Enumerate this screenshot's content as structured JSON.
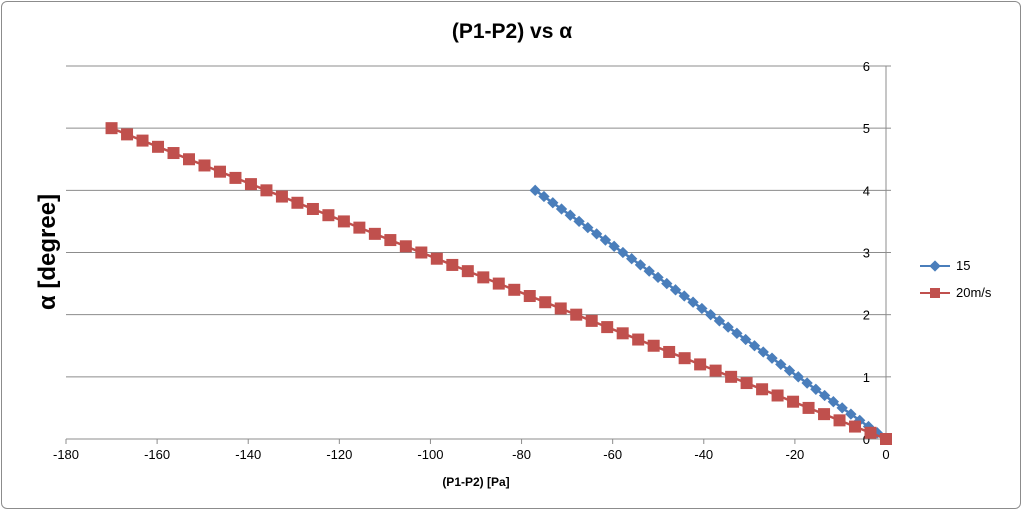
{
  "chart_data": {
    "type": "line",
    "title": "(P1-P2)  vs α",
    "xlabel": "(P1-P2) [Pa]",
    "ylabel": "α [degree]",
    "xlim": [
      -180,
      0
    ],
    "ylim": [
      0,
      6
    ],
    "xticks": [
      -180,
      -160,
      -140,
      -120,
      -100,
      -80,
      -60,
      -40,
      -20,
      0
    ],
    "yticks": [
      0,
      1,
      2,
      3,
      4,
      5,
      6
    ],
    "grid": "horizontal",
    "legend_position": "right",
    "series": [
      {
        "name": "15",
        "color": "#4a7ebb",
        "marker": "diamond",
        "y_start": 4.0,
        "y_end": 0.0,
        "y_step": 0.1,
        "x_at_start": -77,
        "x_at_end": 0
      },
      {
        "name": "20m/s",
        "color": "#c0504d",
        "marker": "square",
        "y_start": 5.0,
        "y_end": 0.0,
        "y_step": 0.1,
        "x_at_start": -170,
        "x_at_end": 0
      }
    ]
  }
}
